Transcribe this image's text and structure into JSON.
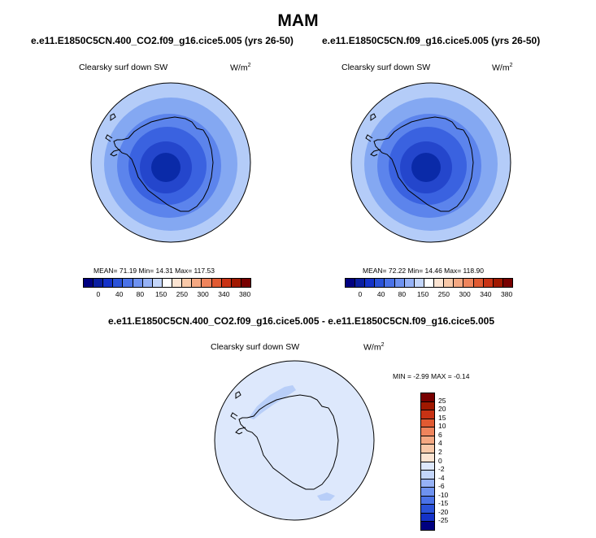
{
  "season": "MAM",
  "panels": [
    {
      "title": "e.e11.E1850C5CN.400_CO2.f09_g16.cice5.005 (yrs 26-50)",
      "variable": "Clearsky surf down SW",
      "units_base": "W/m",
      "units_exp": "2",
      "stats": "MEAN=  71.19  Min=  14.31   Max= 117.53"
    },
    {
      "title": "e.e11.E1850C5CN.f09_g16.cice5.005 (yrs 26-50)",
      "variable": "Clearsky surf down SW",
      "units_base": "W/m",
      "units_exp": "2",
      "stats": "MEAN=  72.22  Min=  14.46  Max= 118.90"
    }
  ],
  "difference": {
    "title": "e.e11.E1850C5CN.400_CO2.f09_g16.cice5.005 - e.e11.E1850C5CN.f09_g16.cice5.005",
    "variable": "Clearsky surf down SW",
    "units_base": "W/m",
    "units_exp": "2",
    "stats": "MIN =  -2.99 MAX =  -0.14"
  },
  "colorbar_abs": {
    "labels": [
      "0",
      "40",
      "80",
      "150",
      "250",
      "300",
      "340",
      "380"
    ],
    "colors": [
      "#000080",
      "#0a1ea0",
      "#1432c8",
      "#2a52d8",
      "#4a72e8",
      "#6e92f0",
      "#96b2f6",
      "#c4d6fa",
      "#ffffff",
      "#fce4d2",
      "#f8c8a8",
      "#f4a882",
      "#ee845c",
      "#e05a32",
      "#c83214",
      "#a01800",
      "#780000"
    ]
  },
  "colorbar_diff": {
    "labels": [
      "25",
      "20",
      "15",
      "10",
      "6",
      "4",
      "2",
      "0",
      "-2",
      "-4",
      "-6",
      "-10",
      "-15",
      "-20",
      "-25"
    ],
    "colors": [
      "#780000",
      "#a01800",
      "#c83214",
      "#e05a32",
      "#ee845c",
      "#f4a882",
      "#f8c8a8",
      "#fce4d2",
      "#dde8fc",
      "#c4d6fa",
      "#96b2f6",
      "#6e92f0",
      "#4a72e8",
      "#2a52d8",
      "#1432c8",
      "#000080"
    ]
  },
  "map_colors": {
    "ring_outer": "#b4ccf8",
    "ring_2": "#84a8f2",
    "ring_3": "#5c84ec",
    "ring_4": "#3a62e0",
    "ring_5": "#2446cc",
    "center": "#0a2aa8",
    "diff_bg": "#dde8fc",
    "diff_patch": "#b8cef8"
  }
}
